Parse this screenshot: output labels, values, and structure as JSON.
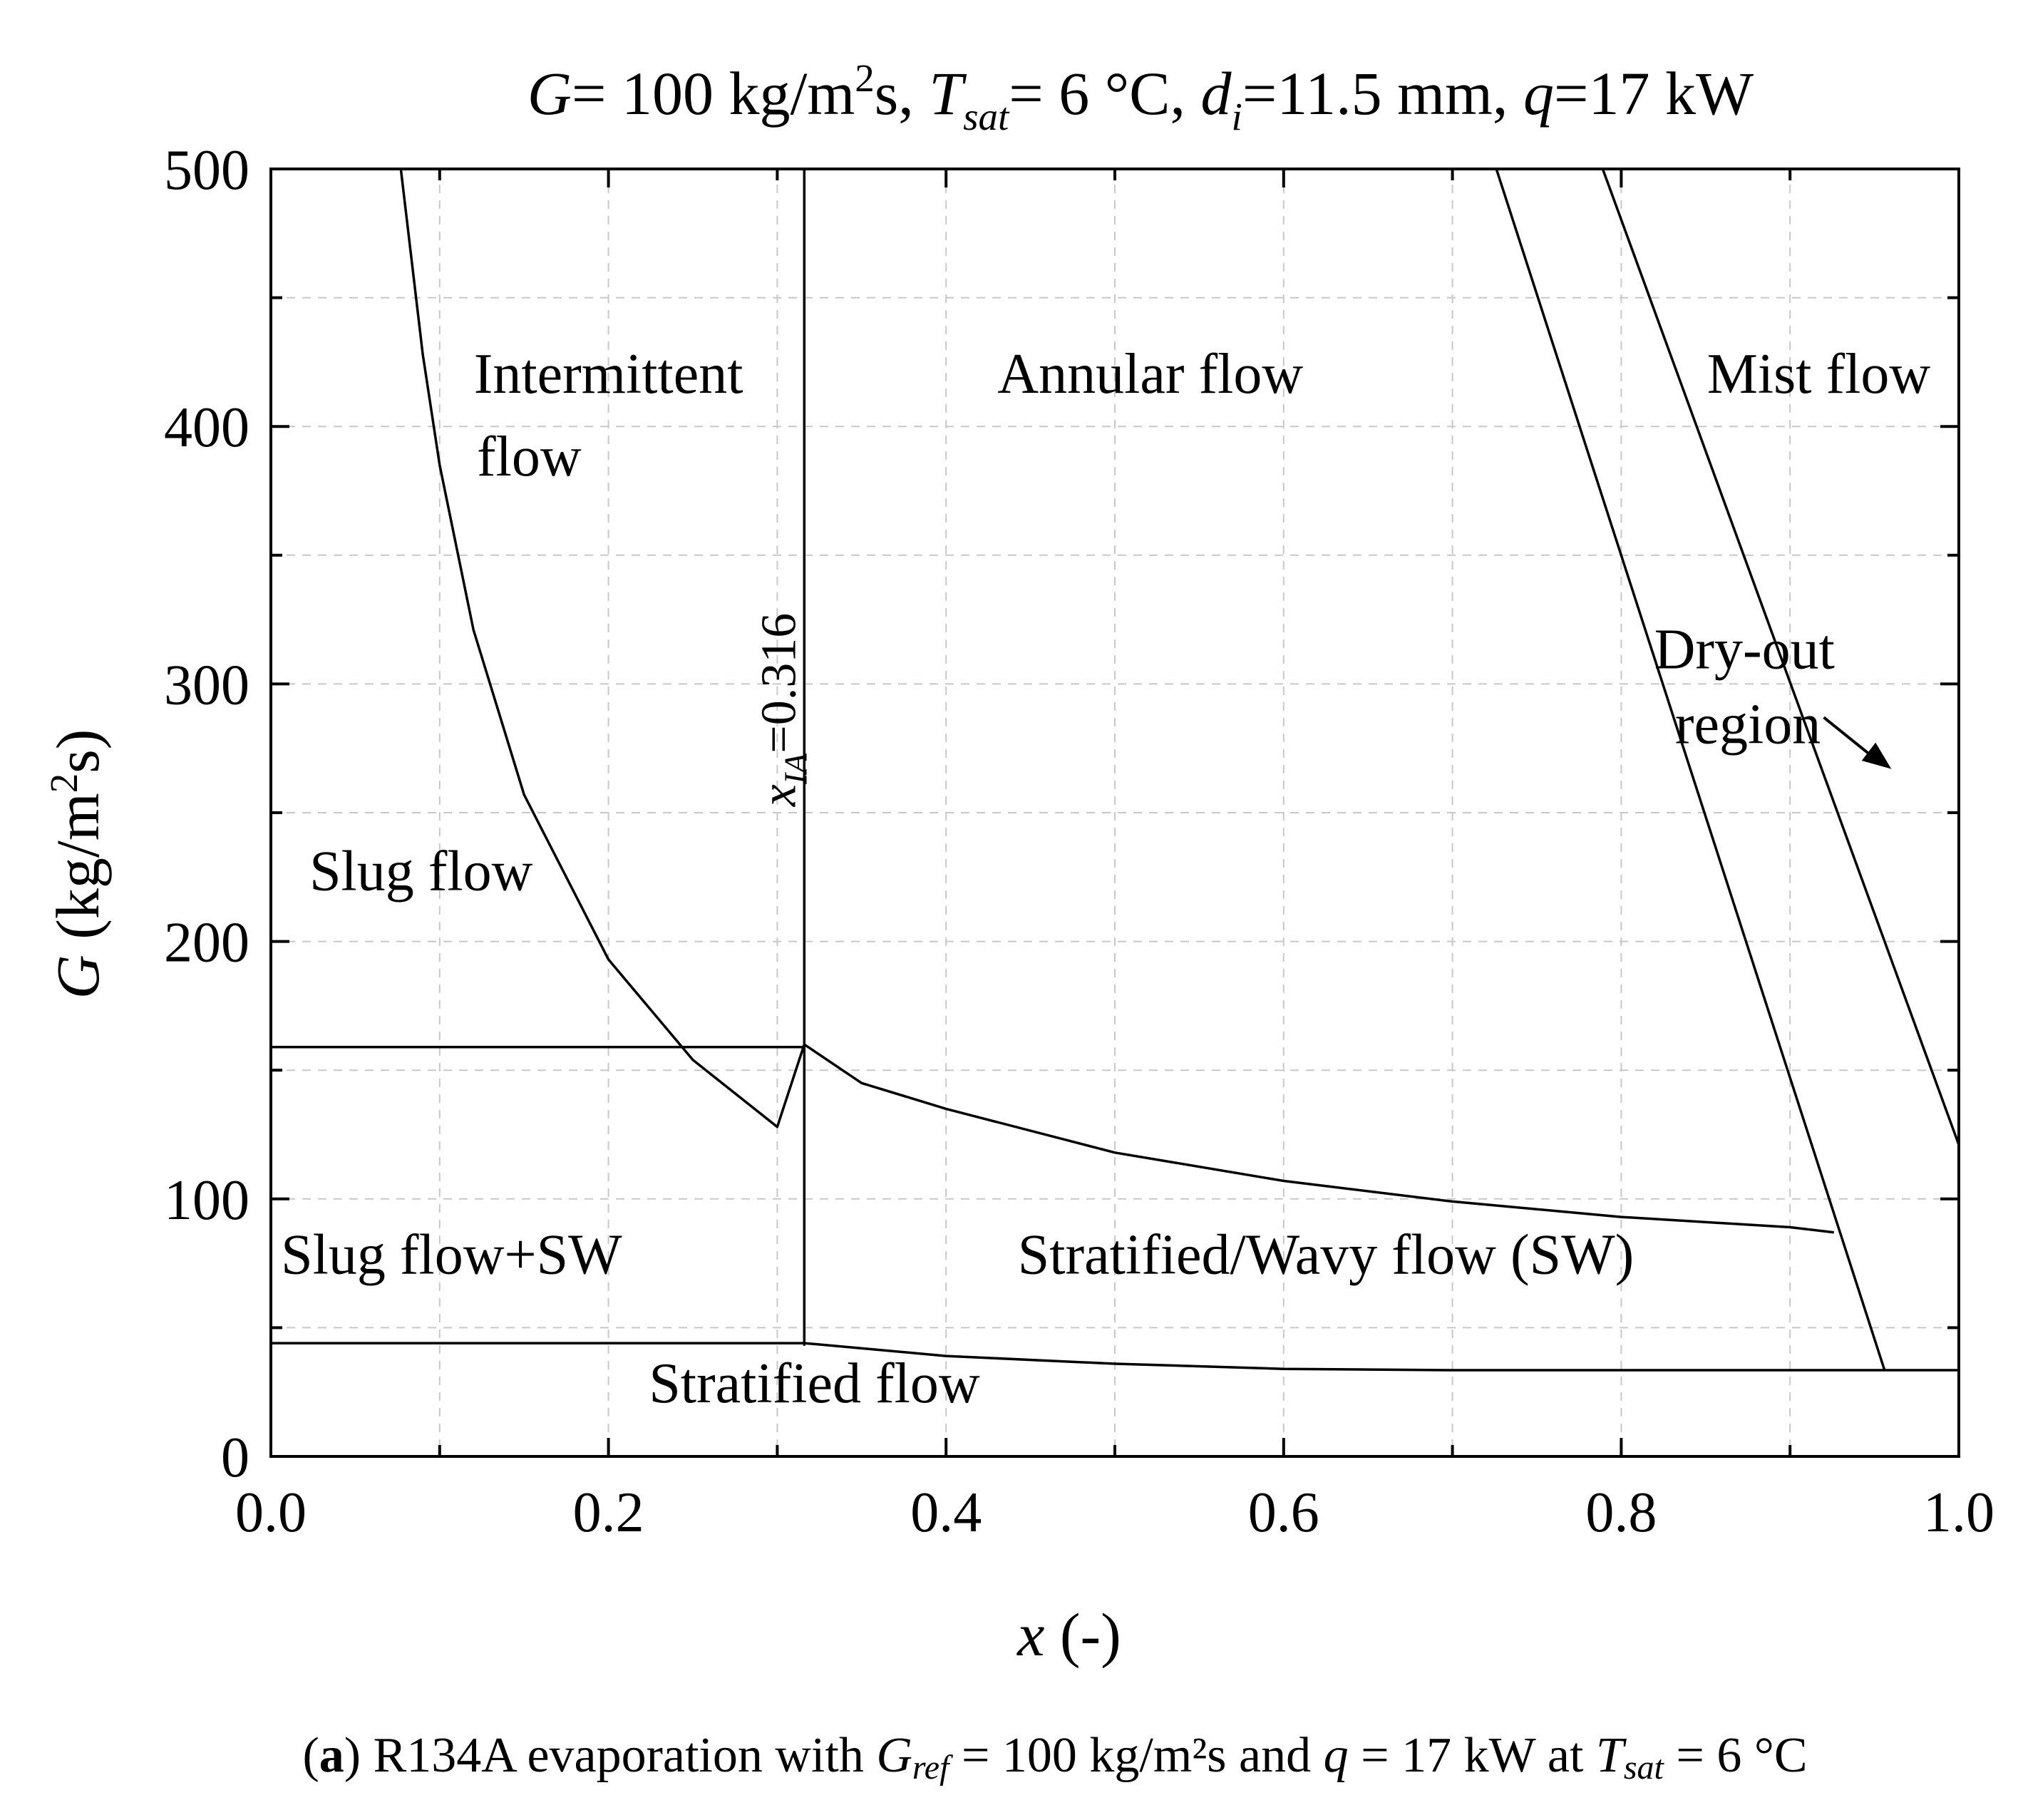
{
  "chart_data": {
    "type": "line",
    "title": {
      "G": "G",
      "part1": "= 100 kg/m",
      "sup2": "2",
      "part2": "s, ",
      "T": "T",
      "Tsub": "sat",
      "part3": "= 6 °C, ",
      "d": "d",
      "dsub": "i",
      "part4": "=11.5 mm, ",
      "q": "q",
      "part5": "=17 kW"
    },
    "xlabel": {
      "var": "x",
      "rest": " (-)"
    },
    "ylabel": {
      "var": "G",
      "pre": " (kg/m",
      "sup": "2",
      "post": "s)"
    },
    "xlim": [
      0.0,
      1.0
    ],
    "ylim": [
      0,
      500
    ],
    "xticks": [
      "0.0",
      "0.2",
      "0.4",
      "0.6",
      "0.8",
      "1.0"
    ],
    "yticks": [
      "0",
      "100",
      "200",
      "300",
      "400",
      "500"
    ],
    "grid": true,
    "series": [
      {
        "name": "intermittent-annular-boundary",
        "x": [
          0.077,
          0.09,
          0.1,
          0.12,
          0.15,
          0.2,
          0.25,
          0.3,
          0.316,
          0.35,
          0.4,
          0.5,
          0.6,
          0.7,
          0.8,
          0.9,
          0.926
        ],
        "y": [
          500,
          428,
          385,
          321,
          257,
          193,
          154,
          128,
          160,
          145,
          135,
          118,
          107,
          99,
          93,
          89,
          87
        ]
      },
      {
        "name": "x_IA transition",
        "x": [
          0.316,
          0.316
        ],
        "y": [
          43,
          500
        ]
      },
      {
        "name": "slug-upper boundary",
        "x": [
          0.0,
          0.316
        ],
        "y": [
          159,
          159
        ]
      },
      {
        "name": "stratified boundary",
        "x": [
          0.0,
          0.316,
          0.4,
          0.5,
          0.6,
          0.7,
          0.8,
          0.9,
          0.956,
          1.0
        ],
        "y": [
          44,
          44,
          39,
          36,
          34,
          33.5,
          33.5,
          33.5,
          33.5,
          33.5
        ]
      },
      {
        "name": "dry-out onset",
        "x": [
          0.726,
          0.956
        ],
        "y": [
          500,
          33.5
        ]
      },
      {
        "name": "dry-out completion",
        "x": [
          0.789,
          1.0
        ],
        "y": [
          500,
          121
        ]
      },
      {
        "name": "stratified-wavy annular end",
        "x": [
          0.926,
          0.926
        ],
        "y": [
          87,
          87
        ]
      }
    ],
    "annotations": [
      {
        "text": "Intermittent",
        "x": 0.2,
        "y": 413
      },
      {
        "text": "flow",
        "x": 0.153,
        "y": 381
      },
      {
        "text": "Annular flow",
        "x": 0.521,
        "y": 413
      },
      {
        "text": "Mist flow",
        "x": 0.917,
        "y": 413
      },
      {
        "text": "Dry-out",
        "x": 0.873,
        "y": 306
      },
      {
        "text": "region",
        "x": 0.875,
        "y": 277
      },
      {
        "text": "Slug flow",
        "x": 0.089,
        "y": 220
      },
      {
        "text": "Slug flow+SW",
        "x": 0.107,
        "y": 71
      },
      {
        "text": "Stratified/Wavy flow (SW)",
        "x": 0.625,
        "y": 71
      },
      {
        "text": "Stratified flow",
        "x": 0.322,
        "y": 21
      }
    ],
    "vertical_label": {
      "var": "x",
      "sub": "IA",
      "value": "=0.316",
      "x": 0.3,
      "y": 290
    },
    "arrow": {
      "from": [
        0.92,
        287
      ],
      "to": [
        0.96,
        267
      ]
    }
  },
  "caption": {
    "open": "(",
    "bold": "a",
    "close": ")",
    "text1": " R134A evaporation with ",
    "G": "G",
    "Gsub": "ref",
    "text2": " = 100 kg/m²s and ",
    "q": "q",
    "text3": " = 17 kW at ",
    "T": "T",
    "Tsub": "sat",
    "text4": " = 6 °C"
  }
}
